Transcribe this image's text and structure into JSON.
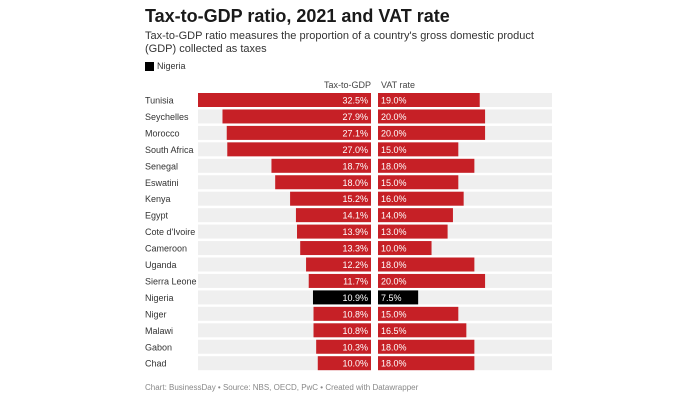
{
  "title": "Tax-to-GDP ratio, 2021 and VAT rate",
  "subtitle": "Tax-to-GDP ratio measures the proportion of a country's gross domestic product (GDP) collected as taxes",
  "legend": {
    "label": "Nigeria",
    "color": "#000000"
  },
  "footer": "Chart: BusinessDay • Source: NBS, OECD, PwC • Created with Datawrapper",
  "chart_data": {
    "type": "bar",
    "title": "Tax-to-GDP ratio, 2021 and VAT rate",
    "orientation": "horizontal",
    "highlight": "Nigeria",
    "colors": {
      "default": "#c62026",
      "highlight": "#000000",
      "background": "#efefef"
    },
    "categories": [
      "Tunisia",
      "Seychelles",
      "Morocco",
      "South Africa",
      "Senegal",
      "Eswatini",
      "Kenya",
      "Egypt",
      "Cote d'Ivoire",
      "Cameroon",
      "Uganda",
      "Sierra Leone",
      "Nigeria",
      "Niger",
      "Malawi",
      "Gabon",
      "Chad"
    ],
    "series": [
      {
        "name": "Tax-to-GDP",
        "values": [
          32.5,
          27.9,
          27.1,
          27.0,
          18.7,
          18.0,
          15.2,
          14.1,
          13.9,
          13.3,
          12.2,
          11.7,
          10.9,
          10.8,
          10.8,
          10.3,
          10.0
        ]
      },
      {
        "name": "VAT rate",
        "values": [
          19.0,
          20.0,
          20.0,
          15.0,
          18.0,
          15.0,
          16.0,
          14.0,
          13.0,
          10.0,
          18.0,
          20.0,
          7.5,
          15.0,
          16.5,
          18.0,
          18.0
        ]
      }
    ],
    "unit": "%",
    "xlim": [
      0,
      32.5
    ]
  }
}
